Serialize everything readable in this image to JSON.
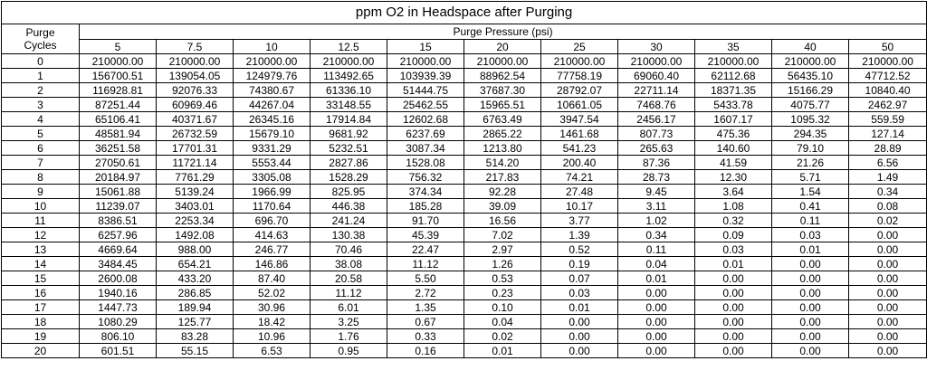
{
  "title": "ppm O2 in Headspace after Purging",
  "purge_cycles_label": "Purge Cycles",
  "pressure_label": "Purge Pressure (psi)",
  "pressures": [
    "5",
    "7.5",
    "10",
    "12.5",
    "15",
    "20",
    "25",
    "30",
    "35",
    "40",
    "50"
  ],
  "rows": [
    {
      "cycle": "0",
      "values": [
        "210000.00",
        "210000.00",
        "210000.00",
        "210000.00",
        "210000.00",
        "210000.00",
        "210000.00",
        "210000.00",
        "210000.00",
        "210000.00",
        "210000.00"
      ]
    },
    {
      "cycle": "1",
      "values": [
        "156700.51",
        "139054.05",
        "124979.76",
        "113492.65",
        "103939.39",
        "88962.54",
        "77758.19",
        "69060.40",
        "62112.68",
        "56435.10",
        "47712.52"
      ]
    },
    {
      "cycle": "2",
      "values": [
        "116928.81",
        "92076.33",
        "74380.67",
        "61336.10",
        "51444.75",
        "37687.30",
        "28792.07",
        "22711.14",
        "18371.35",
        "15166.29",
        "10840.40"
      ]
    },
    {
      "cycle": "3",
      "values": [
        "87251.44",
        "60969.46",
        "44267.04",
        "33148.55",
        "25462.55",
        "15965.51",
        "10661.05",
        "7468.76",
        "5433.78",
        "4075.77",
        "2462.97"
      ]
    },
    {
      "cycle": "4",
      "values": [
        "65106.41",
        "40371.67",
        "26345.16",
        "17914.84",
        "12602.68",
        "6763.49",
        "3947.54",
        "2456.17",
        "1607.17",
        "1095.32",
        "559.59"
      ]
    },
    {
      "cycle": "5",
      "values": [
        "48581.94",
        "26732.59",
        "15679.10",
        "9681.92",
        "6237.69",
        "2865.22",
        "1461.68",
        "807.73",
        "475.36",
        "294.35",
        "127.14"
      ]
    },
    {
      "cycle": "6",
      "values": [
        "36251.58",
        "17701.31",
        "9331.29",
        "5232.51",
        "3087.34",
        "1213.80",
        "541.23",
        "265.63",
        "140.60",
        "79.10",
        "28.89"
      ]
    },
    {
      "cycle": "7",
      "values": [
        "27050.61",
        "11721.14",
        "5553.44",
        "2827.86",
        "1528.08",
        "514.20",
        "200.40",
        "87.36",
        "41.59",
        "21.26",
        "6.56"
      ]
    },
    {
      "cycle": "8",
      "values": [
        "20184.97",
        "7761.29",
        "3305.08",
        "1528.29",
        "756.32",
        "217.83",
        "74.21",
        "28.73",
        "12.30",
        "5.71",
        "1.49"
      ]
    },
    {
      "cycle": "9",
      "values": [
        "15061.88",
        "5139.24",
        "1966.99",
        "825.95",
        "374.34",
        "92.28",
        "27.48",
        "9.45",
        "3.64",
        "1.54",
        "0.34"
      ]
    },
    {
      "cycle": "10",
      "values": [
        "11239.07",
        "3403.01",
        "1170.64",
        "446.38",
        "185.28",
        "39.09",
        "10.17",
        "3.11",
        "1.08",
        "0.41",
        "0.08"
      ]
    },
    {
      "cycle": "11",
      "values": [
        "8386.51",
        "2253.34",
        "696.70",
        "241.24",
        "91.70",
        "16.56",
        "3.77",
        "1.02",
        "0.32",
        "0.11",
        "0.02"
      ]
    },
    {
      "cycle": "12",
      "values": [
        "6257.96",
        "1492.08",
        "414.63",
        "130.38",
        "45.39",
        "7.02",
        "1.39",
        "0.34",
        "0.09",
        "0.03",
        "0.00"
      ]
    },
    {
      "cycle": "13",
      "values": [
        "4669.64",
        "988.00",
        "246.77",
        "70.46",
        "22.47",
        "2.97",
        "0.52",
        "0.11",
        "0.03",
        "0.01",
        "0.00"
      ]
    },
    {
      "cycle": "14",
      "values": [
        "3484.45",
        "654.21",
        "146.86",
        "38.08",
        "11.12",
        "1.26",
        "0.19",
        "0.04",
        "0.01",
        "0.00",
        "0.00"
      ]
    },
    {
      "cycle": "15",
      "values": [
        "2600.08",
        "433.20",
        "87.40",
        "20.58",
        "5.50",
        "0.53",
        "0.07",
        "0.01",
        "0.00",
        "0.00",
        "0.00"
      ]
    },
    {
      "cycle": "16",
      "values": [
        "1940.16",
        "286.85",
        "52.02",
        "11.12",
        "2.72",
        "0.23",
        "0.03",
        "0.00",
        "0.00",
        "0.00",
        "0.00"
      ]
    },
    {
      "cycle": "17",
      "values": [
        "1447.73",
        "189.94",
        "30.96",
        "6.01",
        "1.35",
        "0.10",
        "0.01",
        "0.00",
        "0.00",
        "0.00",
        "0.00"
      ]
    },
    {
      "cycle": "18",
      "values": [
        "1080.29",
        "125.77",
        "18.42",
        "3.25",
        "0.67",
        "0.04",
        "0.00",
        "0.00",
        "0.00",
        "0.00",
        "0.00"
      ]
    },
    {
      "cycle": "19",
      "values": [
        "806.10",
        "83.28",
        "10.96",
        "1.76",
        "0.33",
        "0.02",
        "0.00",
        "0.00",
        "0.00",
        "0.00",
        "0.00"
      ]
    },
    {
      "cycle": "20",
      "values": [
        "601.51",
        "55.15",
        "6.53",
        "0.95",
        "0.16",
        "0.01",
        "0.00",
        "0.00",
        "0.00",
        "0.00",
        "0.00"
      ]
    }
  ]
}
